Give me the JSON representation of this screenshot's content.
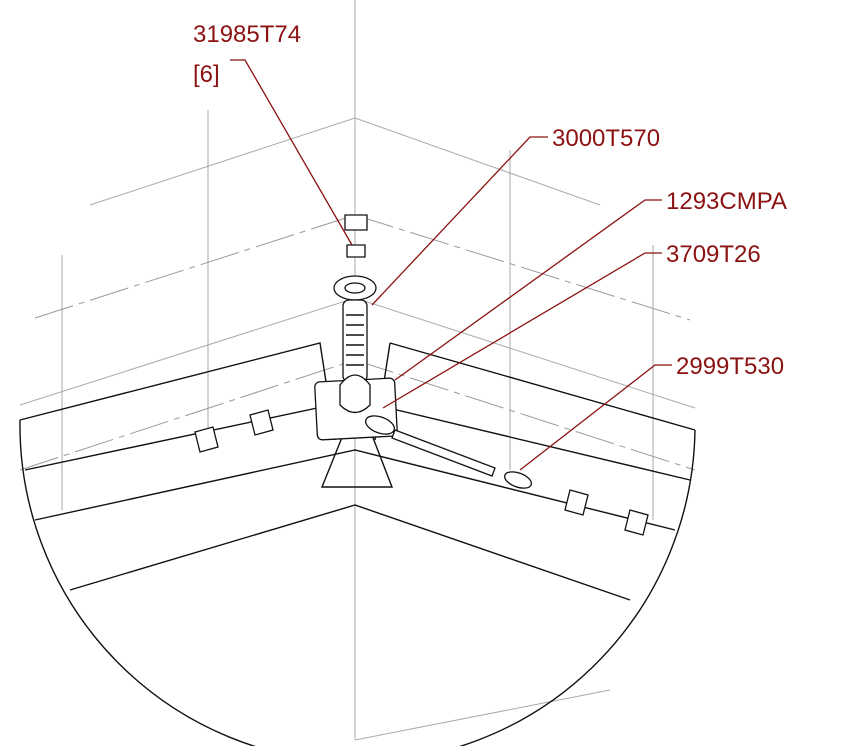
{
  "callouts": [
    {
      "label": "31985T74",
      "quantity": "[6]"
    },
    {
      "label": "3000T570"
    },
    {
      "label": "1293CMPA"
    },
    {
      "label": "3709T26"
    },
    {
      "label": "2999T530"
    }
  ]
}
